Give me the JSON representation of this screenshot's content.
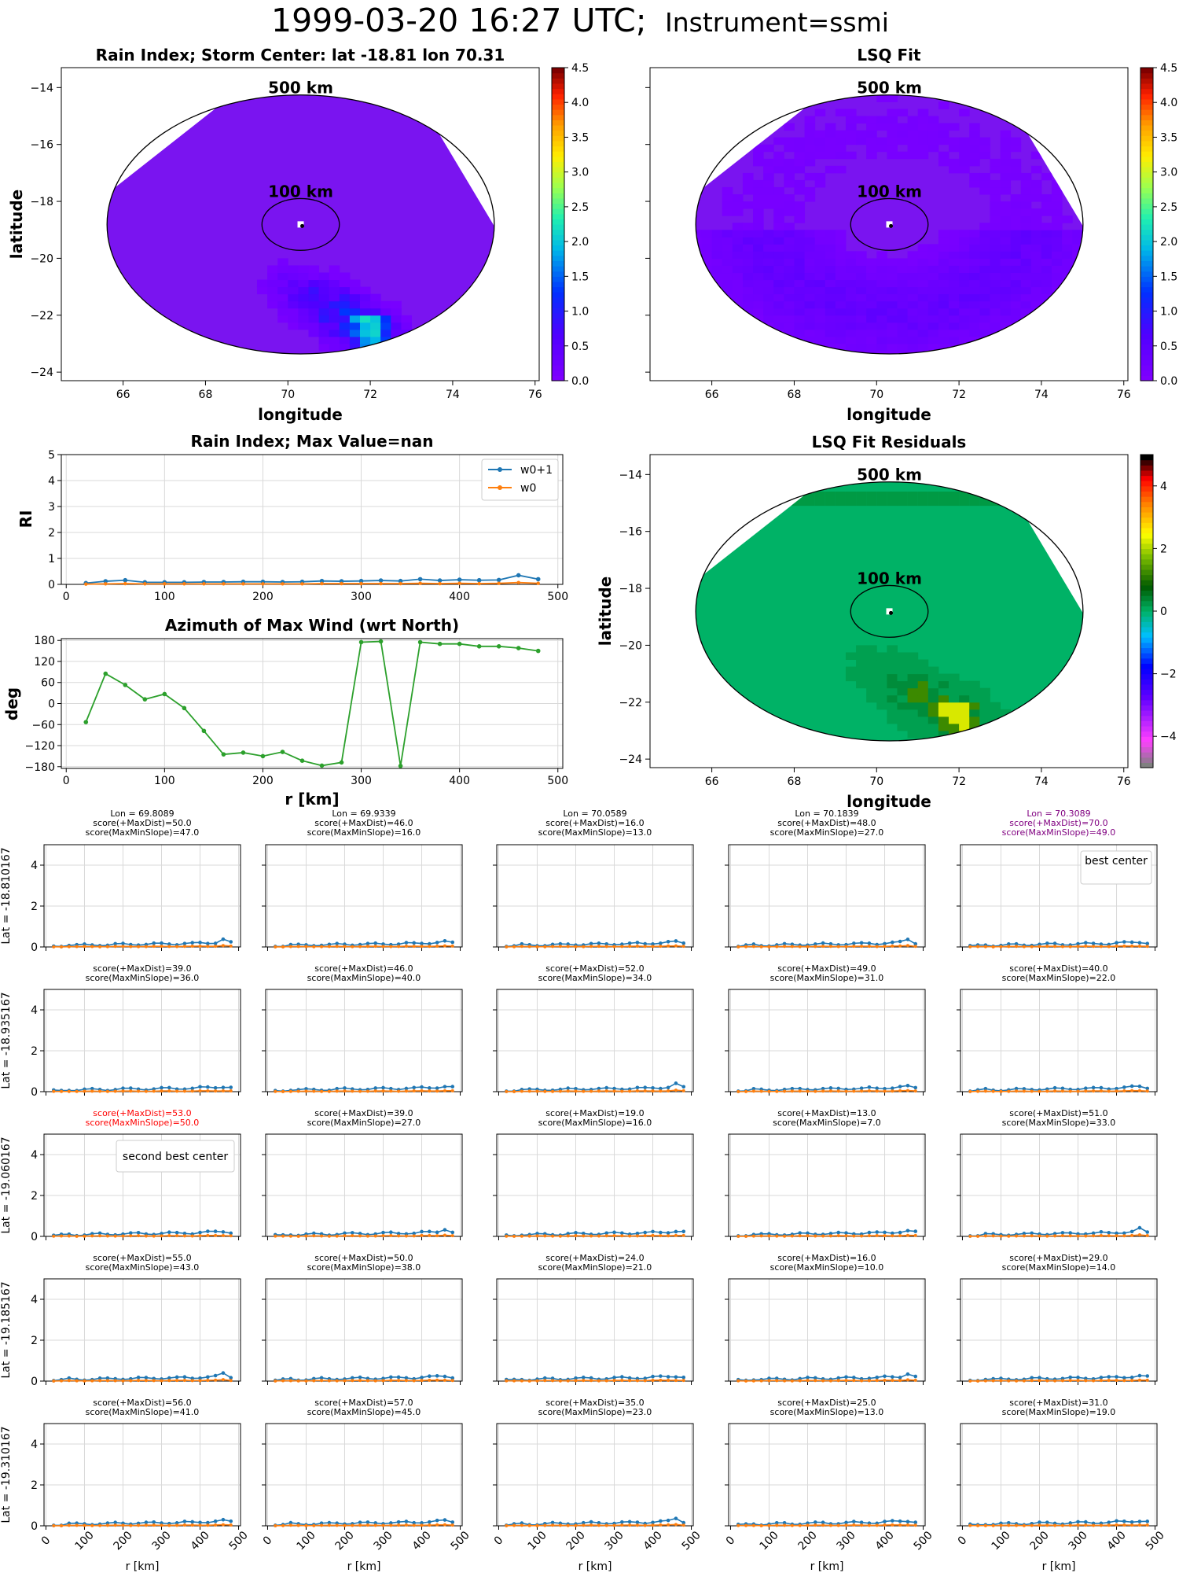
{
  "page": {
    "title_main": "1999-03-20 16:27 UTC;",
    "title_instrument": "Instrument=ssmi"
  },
  "colors": {
    "blue": "#1f77b4",
    "orange": "#ff7f0e",
    "green": "#2ca02c",
    "best": "#800080",
    "second": "#ff0000"
  },
  "chart_data": [
    {
      "id": "rain-map",
      "type": "heatmap",
      "title": "Rain Index; Storm Center: lat -18.81 lon 70.31",
      "xlabel": "longitude",
      "ylabel": "latitude",
      "xlim": [
        64.5,
        76.1
      ],
      "ylim": [
        -24.3,
        -13.3
      ],
      "xticks": [
        66,
        68,
        70,
        72,
        74,
        76
      ],
      "yticks": [
        -14,
        -16,
        -18,
        -20,
        -22,
        -24
      ],
      "center": [
        70.31,
        -18.81
      ],
      "rings": [
        {
          "label": "500 km",
          "radius_km": 500
        },
        {
          "label": "100 km",
          "radius_km": 100
        }
      ],
      "colorbar": {
        "min": 0.0,
        "max": 4.5,
        "ticks": [
          "0.0",
          "0.5",
          "1.0",
          "1.5",
          "2.0",
          "2.5",
          "3.0",
          "3.5",
          "4.0",
          "4.5"
        ]
      },
      "field_note": "mostly near 0 (violet) with a rain band of 0.5-2.0 to the south-southeast"
    },
    {
      "id": "lsq-map",
      "type": "heatmap",
      "title": "LSQ Fit",
      "xlabel": "longitude",
      "ylabel": "",
      "xlim": [
        64.5,
        76.1
      ],
      "ylim": [
        -24.3,
        -13.3
      ],
      "xticks": [
        66,
        68,
        70,
        72,
        74,
        76
      ],
      "center": [
        70.31,
        -18.81
      ],
      "rings": [
        {
          "label": "500 km",
          "radius_km": 500
        },
        {
          "label": "100 km",
          "radius_km": 100
        }
      ],
      "colorbar": {
        "min": 0.0,
        "max": 4.5,
        "ticks": [
          "0.0",
          "0.5",
          "1.0",
          "1.5",
          "2.0",
          "2.5",
          "3.0",
          "3.5",
          "4.0",
          "4.5"
        ]
      }
    },
    {
      "id": "ri-profile",
      "type": "line",
      "title": "Rain Index; Max Value=nan",
      "xlabel": "",
      "ylabel": "RI",
      "xlim": [
        -5,
        505
      ],
      "ylim": [
        0,
        5
      ],
      "xticks": [
        0,
        100,
        200,
        300,
        400,
        500
      ],
      "yticks": [
        0,
        1,
        2,
        3,
        4,
        5
      ],
      "legend": "top-right",
      "x": [
        20,
        40,
        60,
        80,
        100,
        120,
        140,
        160,
        180,
        200,
        220,
        240,
        260,
        280,
        300,
        320,
        340,
        360,
        380,
        400,
        420,
        440,
        460,
        480
      ],
      "series": [
        {
          "name": "w0+1",
          "values": [
            0.05,
            0.12,
            0.16,
            0.08,
            0.08,
            0.08,
            0.09,
            0.09,
            0.1,
            0.1,
            0.09,
            0.1,
            0.13,
            0.12,
            0.13,
            0.15,
            0.13,
            0.2,
            0.15,
            0.18,
            0.16,
            0.17,
            0.35,
            0.2
          ]
        },
        {
          "name": "w0",
          "values": [
            0.01,
            0.02,
            0.03,
            0.02,
            0.02,
            0.02,
            0.02,
            0.02,
            0.02,
            0.02,
            0.02,
            0.02,
            0.03,
            0.03,
            0.03,
            0.03,
            0.03,
            0.04,
            0.03,
            0.04,
            0.03,
            0.04,
            0.07,
            0.04
          ]
        }
      ]
    },
    {
      "id": "azimuth-profile",
      "type": "line",
      "title": "Azimuth of Max Wind (wrt North)",
      "xlabel": "r [km]",
      "ylabel": "deg",
      "xlim": [
        -5,
        505
      ],
      "ylim": [
        -185,
        185
      ],
      "xticks": [
        0,
        100,
        200,
        300,
        400,
        500
      ],
      "yticks": [
        180,
        120,
        60,
        0,
        -60,
        -120,
        -180
      ],
      "x": [
        20,
        40,
        60,
        80,
        100,
        120,
        140,
        160,
        180,
        200,
        220,
        240,
        260,
        280,
        300,
        320,
        340,
        360,
        380,
        400,
        420,
        440,
        460,
        480
      ],
      "values": [
        -53,
        85,
        53,
        12,
        27,
        -13,
        -78,
        -145,
        -140,
        -150,
        -138,
        -163,
        -177,
        -168,
        175,
        177,
        -178,
        175,
        170,
        170,
        163,
        163,
        158,
        150
      ]
    },
    {
      "id": "residual-map",
      "type": "heatmap",
      "title": "LSQ Fit Residuals",
      "xlabel": "longitude",
      "ylabel": "latitude",
      "xlim": [
        64.5,
        76.1
      ],
      "ylim": [
        -24.3,
        -13.3
      ],
      "xticks": [
        66,
        68,
        70,
        72,
        74,
        76
      ],
      "yticks": [
        -14,
        -16,
        -18,
        -20,
        -22,
        -24
      ],
      "center": [
        70.31,
        -18.81
      ],
      "rings": [
        {
          "label": "500 km",
          "radius_km": 500
        },
        {
          "label": "100 km",
          "radius_km": 100
        }
      ],
      "colorbar": {
        "min": -5,
        "max": 5,
        "ticks": [
          "4",
          "2",
          "0",
          "−2",
          "−4"
        ]
      }
    },
    {
      "id": "center-grid",
      "type": "line",
      "xlabel": "r [km]",
      "xlim": [
        -5,
        505
      ],
      "ylim": [
        0,
        5
      ],
      "xticks": [
        0,
        100,
        200,
        300,
        400,
        500
      ],
      "yticks": [
        0,
        2,
        4
      ],
      "lon_labels": [
        "Lon = 69.8089",
        "Lon = 69.9339",
        "Lon = 70.0589",
        "Lon = 70.1839",
        "Lon = 70.3089"
      ],
      "lat_labels": [
        "Lat = -18.810167",
        "Lat = -18.935167",
        "Lat = -19.060167",
        "Lat = -19.185167",
        "Lat = -19.310167"
      ],
      "best_label": "best center",
      "second_label": "second best center",
      "best_cell": [
        0,
        4
      ],
      "second_cell": [
        2,
        0
      ],
      "scores": [
        [
          [
            "score(+MaxDist)=50.0",
            "score(MaxMinSlope)=47.0"
          ],
          [
            "score(+MaxDist)=46.0",
            "score(MaxMinSlope)=16.0"
          ],
          [
            "score(+MaxDist)=16.0",
            "score(MaxMinSlope)=13.0"
          ],
          [
            "score(+MaxDist)=48.0",
            "score(MaxMinSlope)=27.0"
          ],
          [
            "score(+MaxDist)=70.0",
            "score(MaxMinSlope)=49.0"
          ]
        ],
        [
          [
            "score(+MaxDist)=39.0",
            "score(MaxMinSlope)=36.0"
          ],
          [
            "score(+MaxDist)=46.0",
            "score(MaxMinSlope)=40.0"
          ],
          [
            "score(+MaxDist)=52.0",
            "score(MaxMinSlope)=34.0"
          ],
          [
            "score(+MaxDist)=49.0",
            "score(MaxMinSlope)=31.0"
          ],
          [
            "score(+MaxDist)=40.0",
            "score(MaxMinSlope)=22.0"
          ]
        ],
        [
          [
            "score(+MaxDist)=53.0",
            "score(MaxMinSlope)=50.0"
          ],
          [
            "score(+MaxDist)=39.0",
            "score(MaxMinSlope)=27.0"
          ],
          [
            "score(+MaxDist)=19.0",
            "score(MaxMinSlope)=16.0"
          ],
          [
            "score(+MaxDist)=13.0",
            "score(MaxMinSlope)=7.0"
          ],
          [
            "score(+MaxDist)=51.0",
            "score(MaxMinSlope)=33.0"
          ]
        ],
        [
          [
            "score(+MaxDist)=55.0",
            "score(MaxMinSlope)=43.0"
          ],
          [
            "score(+MaxDist)=50.0",
            "score(MaxMinSlope)=38.0"
          ],
          [
            "score(+MaxDist)=24.0",
            "score(MaxMinSlope)=21.0"
          ],
          [
            "score(+MaxDist)=16.0",
            "score(MaxMinSlope)=10.0"
          ],
          [
            "score(+MaxDist)=29.0",
            "score(MaxMinSlope)=14.0"
          ]
        ],
        [
          [
            "score(+MaxDist)=56.0",
            "score(MaxMinSlope)=41.0"
          ],
          [
            "score(+MaxDist)=57.0",
            "score(MaxMinSlope)=45.0"
          ],
          [
            "score(+MaxDist)=35.0",
            "score(MaxMinSlope)=23.0"
          ],
          [
            "score(+MaxDist)=25.0",
            "score(MaxMinSlope)=13.0"
          ],
          [
            "score(+MaxDist)=31.0",
            "score(MaxMinSlope)=19.0"
          ]
        ]
      ]
    }
  ]
}
